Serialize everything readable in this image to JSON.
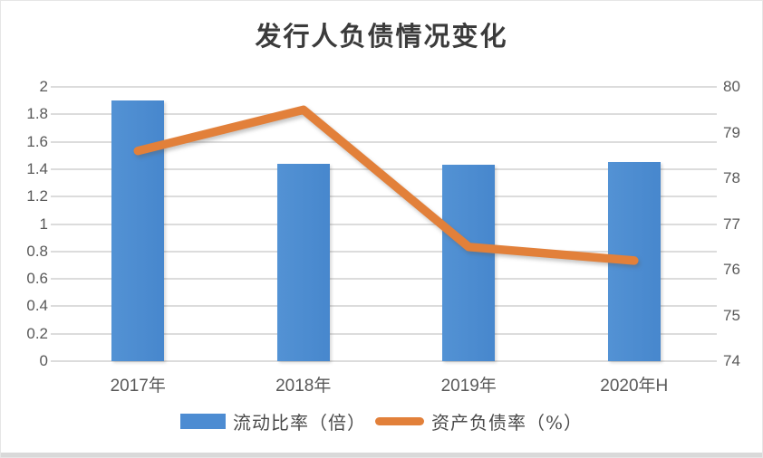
{
  "title": "发行人负债情况变化",
  "colors": {
    "bar": "#4d8cd2",
    "line": "#e2803a",
    "grid": "#dcdcdc",
    "axis_text": "#595959",
    "title_text": "#3b3b3b"
  },
  "chart_data": {
    "type": "bar",
    "subtype": "combo-bar-line",
    "title": "发行人负债情况变化",
    "categories": [
      "2017年",
      "2018年",
      "2019年",
      "2020年H"
    ],
    "series": [
      {
        "name": "流动比率（倍）",
        "type": "bar",
        "axis": "left",
        "values": [
          1.9,
          1.44,
          1.43,
          1.45
        ]
      },
      {
        "name": "资产负债率（%）",
        "type": "line",
        "axis": "right",
        "values": [
          78.6,
          79.5,
          76.5,
          76.2
        ]
      }
    ],
    "left_axis": {
      "min": 0,
      "max": 2,
      "ticks": [
        "2",
        "1.8",
        "1.6",
        "1.4",
        "1.2",
        "1",
        "0.8",
        "0.6",
        "0.4",
        "0.2",
        "0"
      ]
    },
    "right_axis": {
      "min": 74,
      "max": 80,
      "ticks": [
        "80",
        "79",
        "78",
        "77",
        "76",
        "75",
        "74"
      ]
    },
    "grid": true,
    "legend_position": "bottom"
  }
}
